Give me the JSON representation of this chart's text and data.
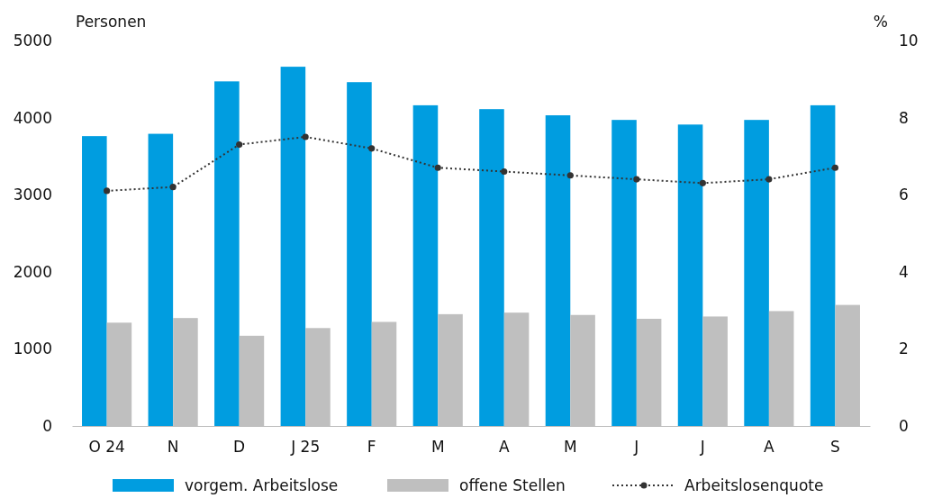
{
  "chart_data": {
    "type": "bar",
    "ylabel": "Personen",
    "y2label": "%",
    "categories": [
      "O 24",
      "N",
      "D",
      "J 25",
      "F",
      "M",
      "A",
      "M",
      "J",
      "J",
      "A",
      "S"
    ],
    "series": [
      {
        "name": "vorgem. Arbeitslose",
        "color": "#009de0",
        "values": [
          3760,
          3790,
          4470,
          4660,
          4460,
          4160,
          4110,
          4030,
          3970,
          3910,
          3970,
          4160
        ]
      },
      {
        "name": "offene Stellen",
        "color": "#bfbfbf",
        "values": [
          1340,
          1400,
          1170,
          1270,
          1350,
          1450,
          1470,
          1440,
          1390,
          1420,
          1490,
          1570
        ]
      },
      {
        "name": "Arbeitslosenquote",
        "type": "line",
        "axis": "y2",
        "color": "#333333",
        "marker": "circle",
        "line_style": "dotted",
        "values": [
          6.1,
          6.2,
          7.3,
          7.5,
          7.2,
          6.7,
          6.6,
          6.5,
          6.4,
          6.3,
          6.4,
          6.7
        ]
      }
    ],
    "ylim": [
      0,
      5000
    ],
    "yticks": [
      0,
      1000,
      2000,
      3000,
      4000,
      5000
    ],
    "y2lim": [
      0,
      10
    ],
    "y2ticks": [
      0,
      2,
      4,
      6,
      8,
      10
    ],
    "grid": false,
    "legend": "bottom"
  }
}
